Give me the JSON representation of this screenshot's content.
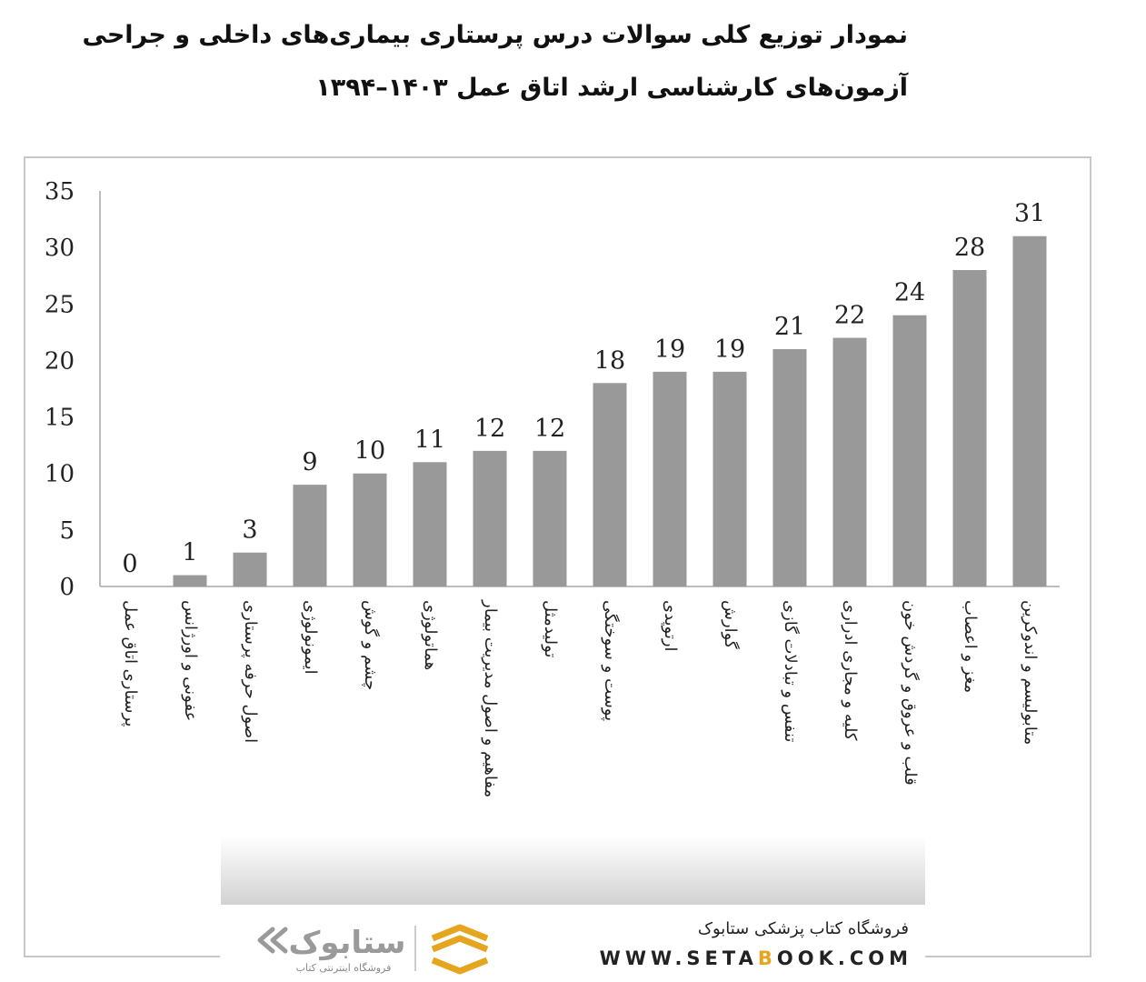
{
  "title": {
    "line1": "نمودار توزیع کلی سوالات درس پرستاری بیماری‌های داخلی و جراحی",
    "line2": "آزمون‌های کارشناسی ارشد اتاق عمل ۱۴۰۳–۱۳۹۴"
  },
  "chart_data": {
    "type": "bar",
    "categories": [
      "پرستاری اتاق عمل",
      "عفونی و اورژانس",
      "اصول حرفه پرستاری",
      "ایمونولوژی",
      "چشم و گوش",
      "هماتولوژی",
      "مفاهیم و اصول مدیریت بیمار",
      "تولیدمثل",
      "پوست و سوختگی",
      "ارتوپدی",
      "گوارش",
      "تنفس و تبادلات گازی",
      "کلیه و مجاری ادراری",
      "قلب و عروق و گردش خون",
      "مغز و اعصاب",
      "متابولیسم و اندوکرین"
    ],
    "values": [
      0,
      1,
      3,
      9,
      10,
      11,
      12,
      12,
      18,
      19,
      19,
      21,
      22,
      24,
      28,
      31
    ],
    "ylim": [
      0,
      35
    ],
    "yticks": [
      0,
      5,
      10,
      15,
      20,
      25,
      30,
      35
    ],
    "data_labels": true,
    "grid": false,
    "bar_color": "#999999"
  },
  "brand": {
    "logo_text": "ستابوک",
    "logo_subtitle": "فروشگاه اینترنتی کتاب",
    "title": "فروشگاه کتاب پزشکی ستابوک",
    "url_prefix": "WWW.SETA",
    "url_highlight": "B",
    "url_suffix": "OOK.COM",
    "accent_color": "#e6a51e"
  }
}
